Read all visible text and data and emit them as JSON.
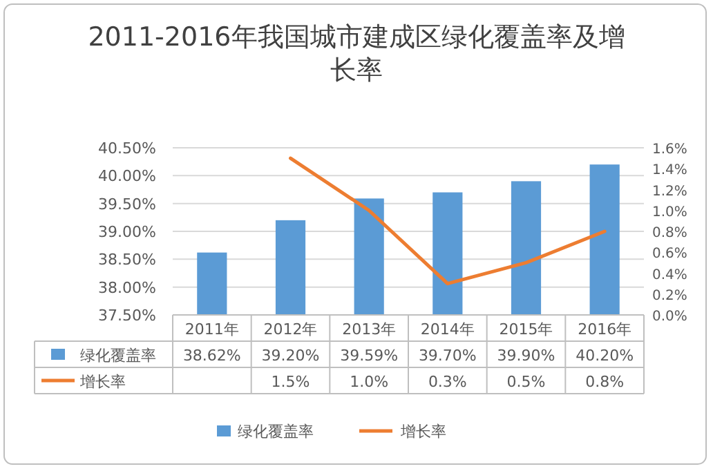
{
  "chart_data": {
    "type": "bar",
    "title": "2011-2016年我国城市建成区绿化覆盖率及增长率",
    "categories": [
      "2011年",
      "2012年",
      "2013年",
      "2014年",
      "2015年",
      "2016年"
    ],
    "series": [
      {
        "name": "绿化覆盖率",
        "color": "#5b9bd5",
        "values": [
          38.62,
          39.2,
          39.59,
          39.7,
          39.9,
          40.2
        ],
        "value_labels": [
          "38.62%",
          "39.20%",
          "39.59%",
          "39.70%",
          "39.90%",
          "40.20%"
        ]
      },
      {
        "name": "增长率",
        "type": "line",
        "axis": "y2",
        "color": "#ed7d31",
        "values": [
          null,
          1.5,
          1.0,
          0.3,
          0.5,
          0.8
        ],
        "value_labels": [
          null,
          "1.5%",
          "1.0%",
          "0.3%",
          "0.5%",
          "0.8%"
        ]
      }
    ],
    "ylim": [
      37.5,
      40.5
    ],
    "yticks": [
      {
        "value": 37.5,
        "label": "37.50%"
      },
      {
        "value": 38,
        "label": "38.00%"
      },
      {
        "value": 38.5,
        "label": "38.50%"
      },
      {
        "value": 39,
        "label": "39.00%"
      },
      {
        "value": 39.5,
        "label": "39.50%"
      },
      {
        "value": 40,
        "label": "40.00%"
      },
      {
        "value": 40.5,
        "label": "40.50%"
      }
    ],
    "y2lim": [
      0,
      1.6
    ],
    "y2ticks": [
      {
        "value": 0,
        "label": "0.0%"
      },
      {
        "value": 0.2,
        "label": "0.2%"
      },
      {
        "value": 0.4,
        "label": "0.4%"
      },
      {
        "value": 0.6,
        "label": "0.6%"
      },
      {
        "value": 0.8,
        "label": "0.8%"
      },
      {
        "value": 1.0,
        "label": "1.0%"
      },
      {
        "value": 1.2,
        "label": "1.2%"
      },
      {
        "value": 1.4,
        "label": "1.4%"
      },
      {
        "value": 1.6,
        "label": "1.6%"
      }
    ],
    "grid": "y",
    "legend": "bottom",
    "line_style": "solid",
    "marker": "none"
  }
}
